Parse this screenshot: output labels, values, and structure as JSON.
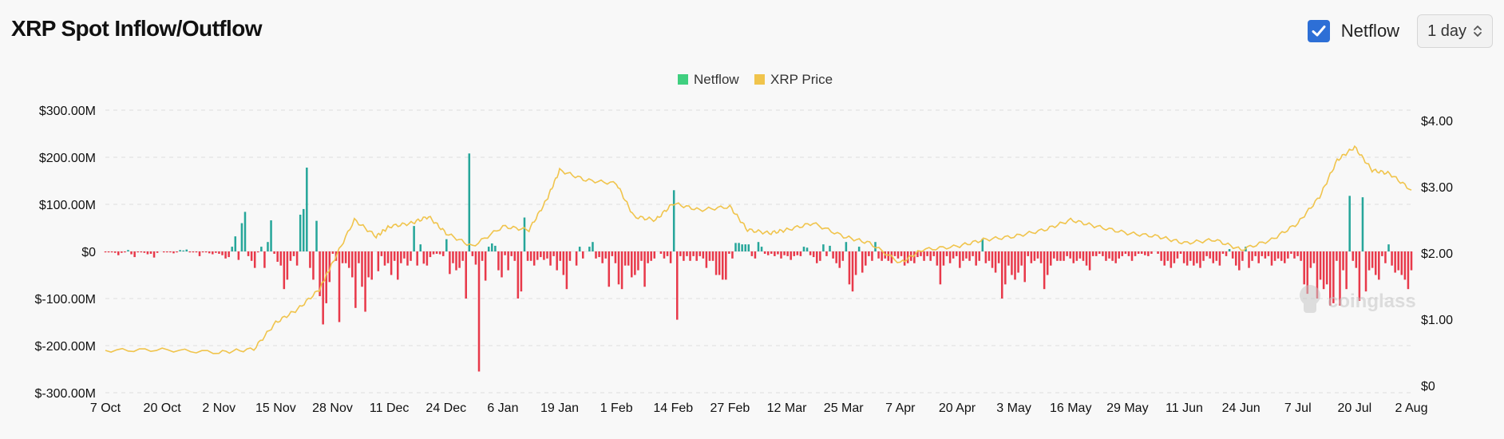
{
  "header": {
    "title": "XRP Spot Inflow/Outflow",
    "toggle_label": "Netflow",
    "toggle_checked": true,
    "period_value": "1 day"
  },
  "watermark": "coinglass",
  "colors": {
    "inflow": "#26a69a",
    "outflow": "#e8394a",
    "price": "#f0c44c",
    "legend_netflow": "#3fcf7f"
  },
  "chart_data": {
    "type": "bar",
    "legend": [
      "Netflow",
      "XRP Price"
    ],
    "left_axis": {
      "ticks": [
        "$300.00M",
        "$200.00M",
        "$100.00M",
        "$0",
        "$-100.00M",
        "$-200.00M",
        "$-300.00M"
      ],
      "range": [
        -300,
        300
      ],
      "unit": "M USD"
    },
    "right_axis": {
      "ticks": [
        "$4.00",
        "$3.00",
        "$2.00",
        "$1.00",
        "$0"
      ],
      "range": [
        0,
        4
      ]
    },
    "x_ticks": [
      "7 Oct",
      "20 Oct",
      "2 Nov",
      "15 Nov",
      "28 Nov",
      "11 Dec",
      "24 Dec",
      "6 Jan",
      "19 Jan",
      "1 Feb",
      "14 Feb",
      "27 Feb",
      "12 Mar",
      "25 Mar",
      "7 Apr",
      "20 Apr",
      "3 May",
      "16 May",
      "29 May",
      "11 Jun",
      "24 Jun",
      "7 Jul",
      "20 Jul",
      "2 Aug"
    ],
    "series": [
      {
        "name": "Netflow",
        "values": [
          -2,
          -2,
          -1,
          -3,
          -8,
          -3,
          -2,
          3,
          -6,
          -12,
          -2,
          -1,
          -3,
          -6,
          -5,
          -13,
          -3,
          0,
          -2,
          -1,
          -2,
          -4,
          -2,
          3,
          2,
          4,
          -2,
          -2,
          -1,
          -10,
          -2,
          -2,
          -4,
          -6,
          -3,
          -5,
          -8,
          -15,
          -12,
          10,
          32,
          -18,
          60,
          84,
          -10,
          -20,
          -35,
          -2,
          10,
          -35,
          20,
          66,
          -5,
          -22,
          -30,
          -80,
          -60,
          -20,
          -10,
          -30,
          78,
          90,
          178,
          -35,
          -60,
          65,
          -95,
          -155,
          -110,
          -65,
          -5,
          -20,
          -150,
          -25,
          -25,
          -35,
          -55,
          -120,
          -25,
          -75,
          -128,
          -55,
          -60,
          0,
          -42,
          -10,
          -30,
          -25,
          -50,
          -20,
          -60,
          -25,
          -15,
          -30,
          -20,
          54,
          -30,
          15,
          -26,
          -30,
          -12,
          -6,
          -5,
          -6,
          -10,
          26,
          -48,
          -25,
          -40,
          -35,
          -20,
          -100,
          208,
          -10,
          -28,
          -255,
          -20,
          -62,
          10,
          17,
          12,
          -40,
          -55,
          -8,
          -40,
          -10,
          -20,
          -100,
          -85,
          72,
          -20,
          -20,
          -30,
          -18,
          -12,
          -18,
          -15,
          -30,
          -10,
          -40,
          -20,
          -50,
          -80,
          -20,
          0,
          -30,
          10,
          -15,
          0,
          10,
          20,
          -15,
          -12,
          -25,
          -15,
          -75,
          -10,
          -25,
          -70,
          -80,
          -30,
          -30,
          -55,
          -50,
          -40,
          -20,
          -75,
          -25,
          -20,
          -15,
          0,
          -5,
          -15,
          -10,
          -25,
          130,
          -145,
          -10,
          -20,
          -10,
          -20,
          -10,
          -20,
          -10,
          -15,
          -35,
          -20,
          -20,
          -50,
          -50,
          -60,
          -60,
          -5,
          -15,
          18,
          18,
          15,
          15,
          15,
          -10,
          -15,
          20,
          10,
          -5,
          -8,
          -5,
          -10,
          -6,
          -15,
          -8,
          -10,
          -18,
          -10,
          -8,
          -10,
          10,
          8,
          -8,
          -12,
          -25,
          -20,
          15,
          -10,
          12,
          -15,
          -25,
          -35,
          -20,
          20,
          -70,
          -85,
          -50,
          10,
          -45,
          -30,
          -10,
          -20,
          20,
          -15,
          -20,
          -15,
          -20,
          -25,
          -10,
          -15,
          -10,
          -30,
          -25,
          -20,
          -25,
          -12,
          -10,
          -20,
          -10,
          -20,
          -10,
          -30,
          -70,
          -30,
          -10,
          -25,
          -15,
          -10,
          -35,
          -20,
          -15,
          -20,
          -10,
          -30,
          -20,
          27,
          -25,
          -20,
          -35,
          -45,
          -25,
          -100,
          -70,
          -30,
          -50,
          -60,
          -45,
          -30,
          -65,
          -10,
          -25,
          -20,
          -15,
          -25,
          -80,
          -50,
          -30,
          -15,
          -20,
          -20,
          -20,
          -10,
          -15,
          -25,
          -20,
          -15,
          -20,
          -30,
          -40,
          -10,
          -10,
          -5,
          -10,
          -20,
          -15,
          -20,
          -25,
          -15,
          -10,
          -5,
          -10,
          -20,
          -10,
          -5,
          -5,
          -8,
          -10,
          -5,
          0,
          -5,
          -20,
          -30,
          -20,
          -35,
          -25,
          -15,
          -5,
          -25,
          -30,
          -20,
          -30,
          -25,
          -35,
          -20,
          -10,
          -15,
          -25,
          -20,
          -30,
          -5,
          -10,
          5,
          -15,
          -30,
          -40,
          -20,
          10,
          -35,
          -20,
          -10,
          -25,
          -10,
          -15,
          -10,
          -30,
          -20,
          -15,
          -20,
          -25,
          -15,
          -5,
          -15,
          -10,
          -20,
          -70,
          -90,
          -35,
          -25,
          -100,
          -60,
          -80,
          -70,
          -115,
          -110,
          -20,
          -115,
          -40,
          -80,
          118,
          -20,
          -35,
          -105,
          115,
          -85,
          -40,
          -35,
          -50,
          -60,
          -10,
          -25,
          15,
          -30,
          -45,
          -40,
          -50,
          -60,
          -80,
          -40
        ],
        "note": ""
      },
      {
        "name": "XRP Price",
        "x": [
          "7 Oct",
          "20 Oct",
          "2 Nov",
          "10 Nov",
          "15 Nov",
          "20 Nov",
          "25 Nov",
          "28 Nov",
          "3 Dec",
          "8 Dec",
          "11 Dec",
          "16 Dec",
          "20 Dec",
          "24 Dec",
          "30 Dec",
          "6 Jan",
          "12 Jan",
          "16 Jan",
          "19 Jan",
          "25 Jan",
          "1 Feb",
          "5 Feb",
          "10 Feb",
          "14 Feb",
          "20 Feb",
          "27 Feb",
          "3 Mar",
          "8 Mar",
          "12 Mar",
          "18 Mar",
          "25 Mar",
          "31 Mar",
          "7 Apr",
          "12 Apr",
          "20 Apr",
          "26 Apr",
          "3 May",
          "10 May",
          "16 May",
          "22 May",
          "29 May",
          "5 Jun",
          "11 Jun",
          "18 Jun",
          "24 Jun",
          "1 Jul",
          "7 Jul",
          "12 Jul",
          "16 Jul",
          "20 Jul",
          "24 Jul",
          "28 Jul",
          "2 Aug"
        ],
        "values": [
          0.53,
          0.54,
          0.5,
          0.55,
          0.95,
          1.15,
          1.45,
          1.85,
          2.5,
          2.25,
          2.4,
          2.45,
          2.55,
          2.3,
          2.1,
          2.4,
          2.35,
          2.8,
          3.25,
          3.1,
          3.05,
          2.55,
          2.5,
          2.75,
          2.65,
          2.7,
          2.35,
          2.3,
          2.35,
          2.45,
          2.25,
          2.15,
          1.85,
          2.05,
          2.1,
          2.2,
          2.25,
          2.35,
          2.5,
          2.4,
          2.3,
          2.25,
          2.15,
          2.2,
          2.05,
          2.2,
          2.45,
          2.85,
          3.4,
          3.6,
          3.25,
          3.2,
          2.95
        ]
      }
    ]
  }
}
